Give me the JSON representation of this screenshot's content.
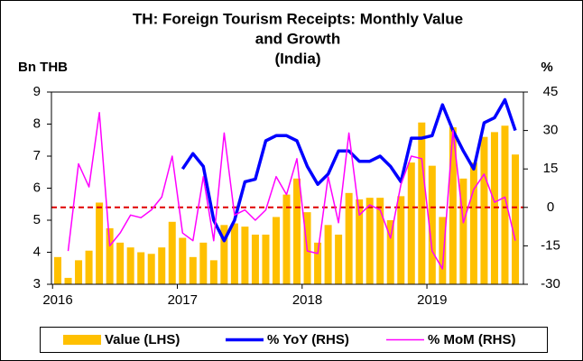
{
  "chart_data": {
    "type": "bar_line",
    "title": [
      "TH: Foreign Tourism Receipts: Monthly Value",
      "and Growth",
      "(India)"
    ],
    "y_label": "Bn THB",
    "y2_label": "%",
    "categories": [
      "2016",
      null,
      null,
      null,
      null,
      null,
      null,
      null,
      null,
      null,
      null,
      null,
      "2017",
      null,
      null,
      null,
      null,
      null,
      null,
      null,
      null,
      null,
      null,
      null,
      "2018",
      null,
      null,
      null,
      null,
      null,
      null,
      null,
      null,
      null,
      null,
      null,
      "2019",
      null,
      null,
      null,
      null,
      null,
      null,
      null,
      null
    ],
    "series": [
      {
        "name": "Value (LHS)",
        "color": "#ffc000",
        "kind": "bar",
        "axis": "y",
        "values": [
          3.85,
          3.2,
          3.75,
          4.05,
          5.55,
          4.75,
          4.3,
          4.15,
          4.0,
          3.95,
          4.15,
          4.95,
          4.45,
          3.85,
          4.3,
          3.75,
          4.85,
          4.9,
          4.8,
          4.55,
          4.55,
          5.1,
          5.8,
          6.3,
          5.25,
          4.3,
          4.85,
          4.55,
          5.85,
          5.65,
          5.7,
          5.7,
          5.0,
          5.75,
          6.8,
          8.05,
          6.7,
          5.1,
          7.9,
          6.3,
          6.8,
          7.6,
          7.75,
          7.95,
          7.05
        ]
      },
      {
        "name": "% YoY (RHS)",
        "color": "#0000ff",
        "kind": "line",
        "axis": "y2",
        "values": [
          null,
          null,
          null,
          null,
          null,
          null,
          null,
          null,
          null,
          null,
          null,
          null,
          15,
          21,
          16,
          -5,
          -13,
          -5,
          10,
          11,
          26,
          28,
          28,
          26,
          16,
          9,
          13,
          22,
          22,
          18,
          18,
          20,
          16,
          10,
          27,
          27,
          28,
          40,
          30,
          22,
          15,
          33,
          35,
          42,
          30
        ]
      },
      {
        "name": "% MoM (RHS)",
        "color": "#ff00ff",
        "kind": "line",
        "axis": "y2",
        "values": [
          null,
          -17,
          17,
          8,
          37,
          -15,
          -10,
          -3,
          -4,
          -1,
          4,
          20,
          -10,
          -13,
          12,
          -13,
          29,
          -3,
          -1,
          -5,
          -1,
          12,
          5,
          19,
          -17,
          -18,
          12,
          -6,
          29,
          -3,
          1,
          -1,
          -12,
          9,
          20,
          19,
          -17,
          -24,
          30,
          -6,
          7,
          13,
          2,
          4,
          -13
        ]
      }
    ],
    "ylim": [
      3,
      9
    ],
    "yticks": [
      3,
      4,
      5,
      6,
      7,
      8,
      9
    ],
    "y2lim": [
      -30,
      45
    ],
    "y2ticks": [
      -30,
      -15,
      0,
      15,
      30,
      45
    ],
    "y2_reference": 0,
    "reference_color": "#e00000",
    "legend": "bottom"
  }
}
